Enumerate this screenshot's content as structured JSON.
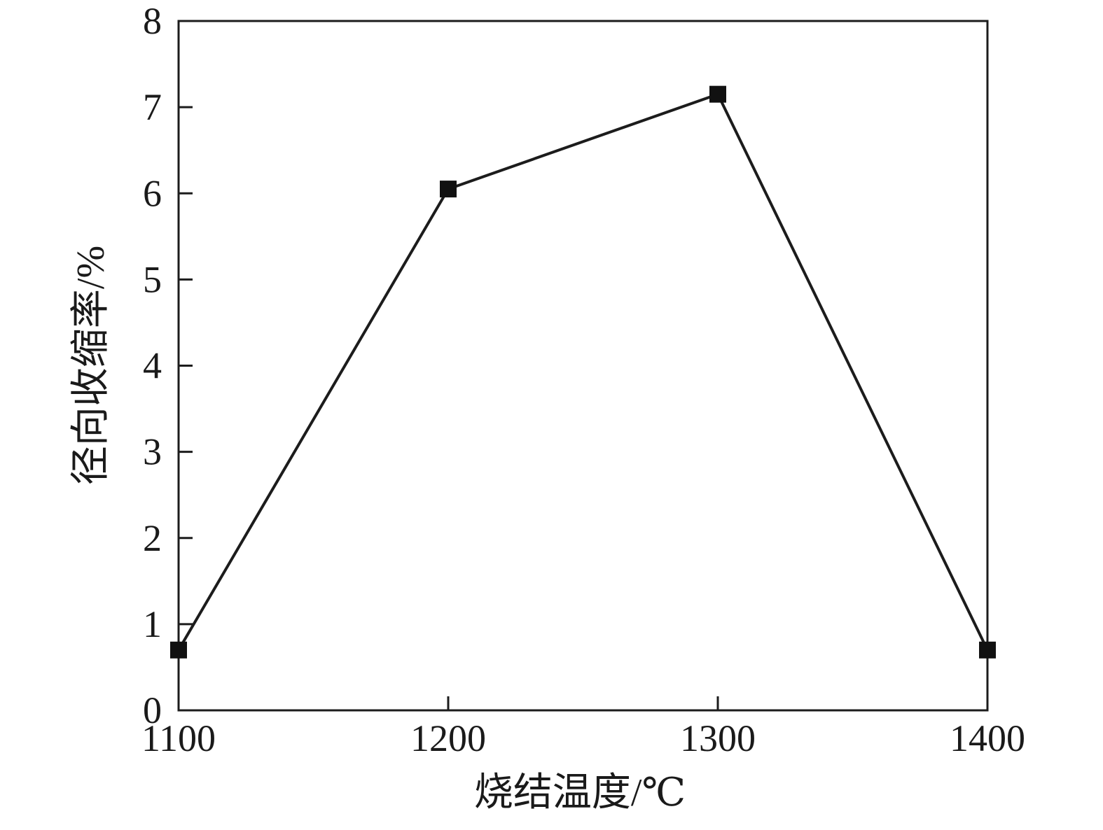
{
  "chart_data": {
    "type": "line",
    "title": "",
    "xlabel": "烧结温度/℃",
    "ylabel": "径向收缩率/%",
    "x": [
      1100,
      1200,
      1300,
      1400
    ],
    "series": [
      {
        "name": "径向收缩率",
        "values": [
          0.7,
          6.05,
          7.15,
          0.7
        ]
      }
    ],
    "xlim": [
      1100,
      1400
    ],
    "ylim": [
      0,
      8
    ],
    "xticks": [
      1100,
      1200,
      1300,
      1400
    ],
    "yticks": [
      0,
      1,
      2,
      3,
      4,
      5,
      6,
      7,
      8
    ],
    "grid": false,
    "legend_position": "none",
    "marker": "square",
    "line_color": "#1c1c1c",
    "marker_color": "#111111",
    "background_color": "#ffffff"
  }
}
